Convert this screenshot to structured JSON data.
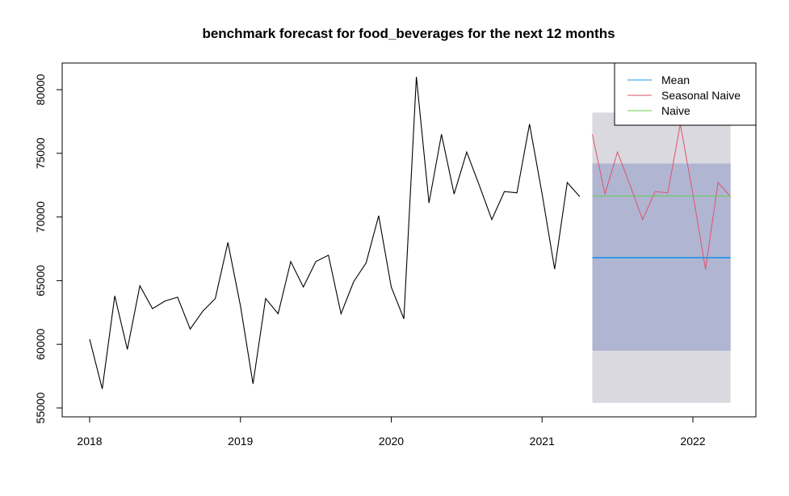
{
  "chart_data": {
    "type": "line",
    "title": "benchmark forecast for food_beverages for the next 12 months",
    "xlabel": "",
    "ylabel": "",
    "xlim": [
      2017.8,
      2022.4
    ],
    "ylim": [
      55000,
      81500
    ],
    "x_ticks": [
      2018,
      2019,
      2020,
      2021,
      2022
    ],
    "x_tick_labels": [
      "2018",
      "2019",
      "2020",
      "2021",
      "2022"
    ],
    "y_ticks": [
      55000,
      60000,
      65000,
      70000,
      75000,
      80000
    ],
    "y_tick_labels": [
      "55000",
      "60000",
      "65000",
      "70000",
      "75000",
      "80000"
    ],
    "grid": false,
    "legend": {
      "position": "top-right",
      "entries": [
        {
          "name": "Mean",
          "color": "#2297E6"
        },
        {
          "name": "Seasonal Naive",
          "color": "#DF536B"
        },
        {
          "name": "Naive",
          "color": "#61D04F"
        }
      ]
    },
    "history": {
      "color": "#000000",
      "start_year": 2018,
      "start_month": 1,
      "values": [
        60400,
        56500,
        63800,
        59600,
        64600,
        62800,
        63400,
        63700,
        61200,
        62600,
        63600,
        68000,
        63000,
        56900,
        63600,
        62400,
        66500,
        64500,
        66500,
        67000,
        62400,
        64900,
        66400,
        70100,
        64500,
        62000,
        81000,
        71100,
        76500,
        71800,
        75100,
        72500,
        69800,
        72000,
        71900,
        77300,
        71800,
        65900,
        72700,
        71600
      ]
    },
    "forecast": {
      "start_year": 2021,
      "start_month": 5,
      "months": 12,
      "band_80": {
        "low": 59500,
        "high": 74200,
        "color": "#B0B5D2"
      },
      "band_95": {
        "low": 55400,
        "high": 78200,
        "color": "#D9D9DF"
      },
      "series": [
        {
          "name": "Mean",
          "color": "#2297E6",
          "values": [
            66800,
            66800,
            66800,
            66800,
            66800,
            66800,
            66800,
            66800,
            66800,
            66800,
            66800,
            66800
          ]
        },
        {
          "name": "Seasonal Naive",
          "color": "#DF536B",
          "values": [
            76500,
            71800,
            75100,
            72500,
            69800,
            72000,
            71900,
            77300,
            71800,
            65900,
            72700,
            71600
          ]
        },
        {
          "name": "Naive",
          "color": "#61D04F",
          "values": [
            71650,
            71650,
            71650,
            71650,
            71650,
            71650,
            71650,
            71650,
            71650,
            71650,
            71650,
            71650
          ]
        }
      ]
    }
  }
}
